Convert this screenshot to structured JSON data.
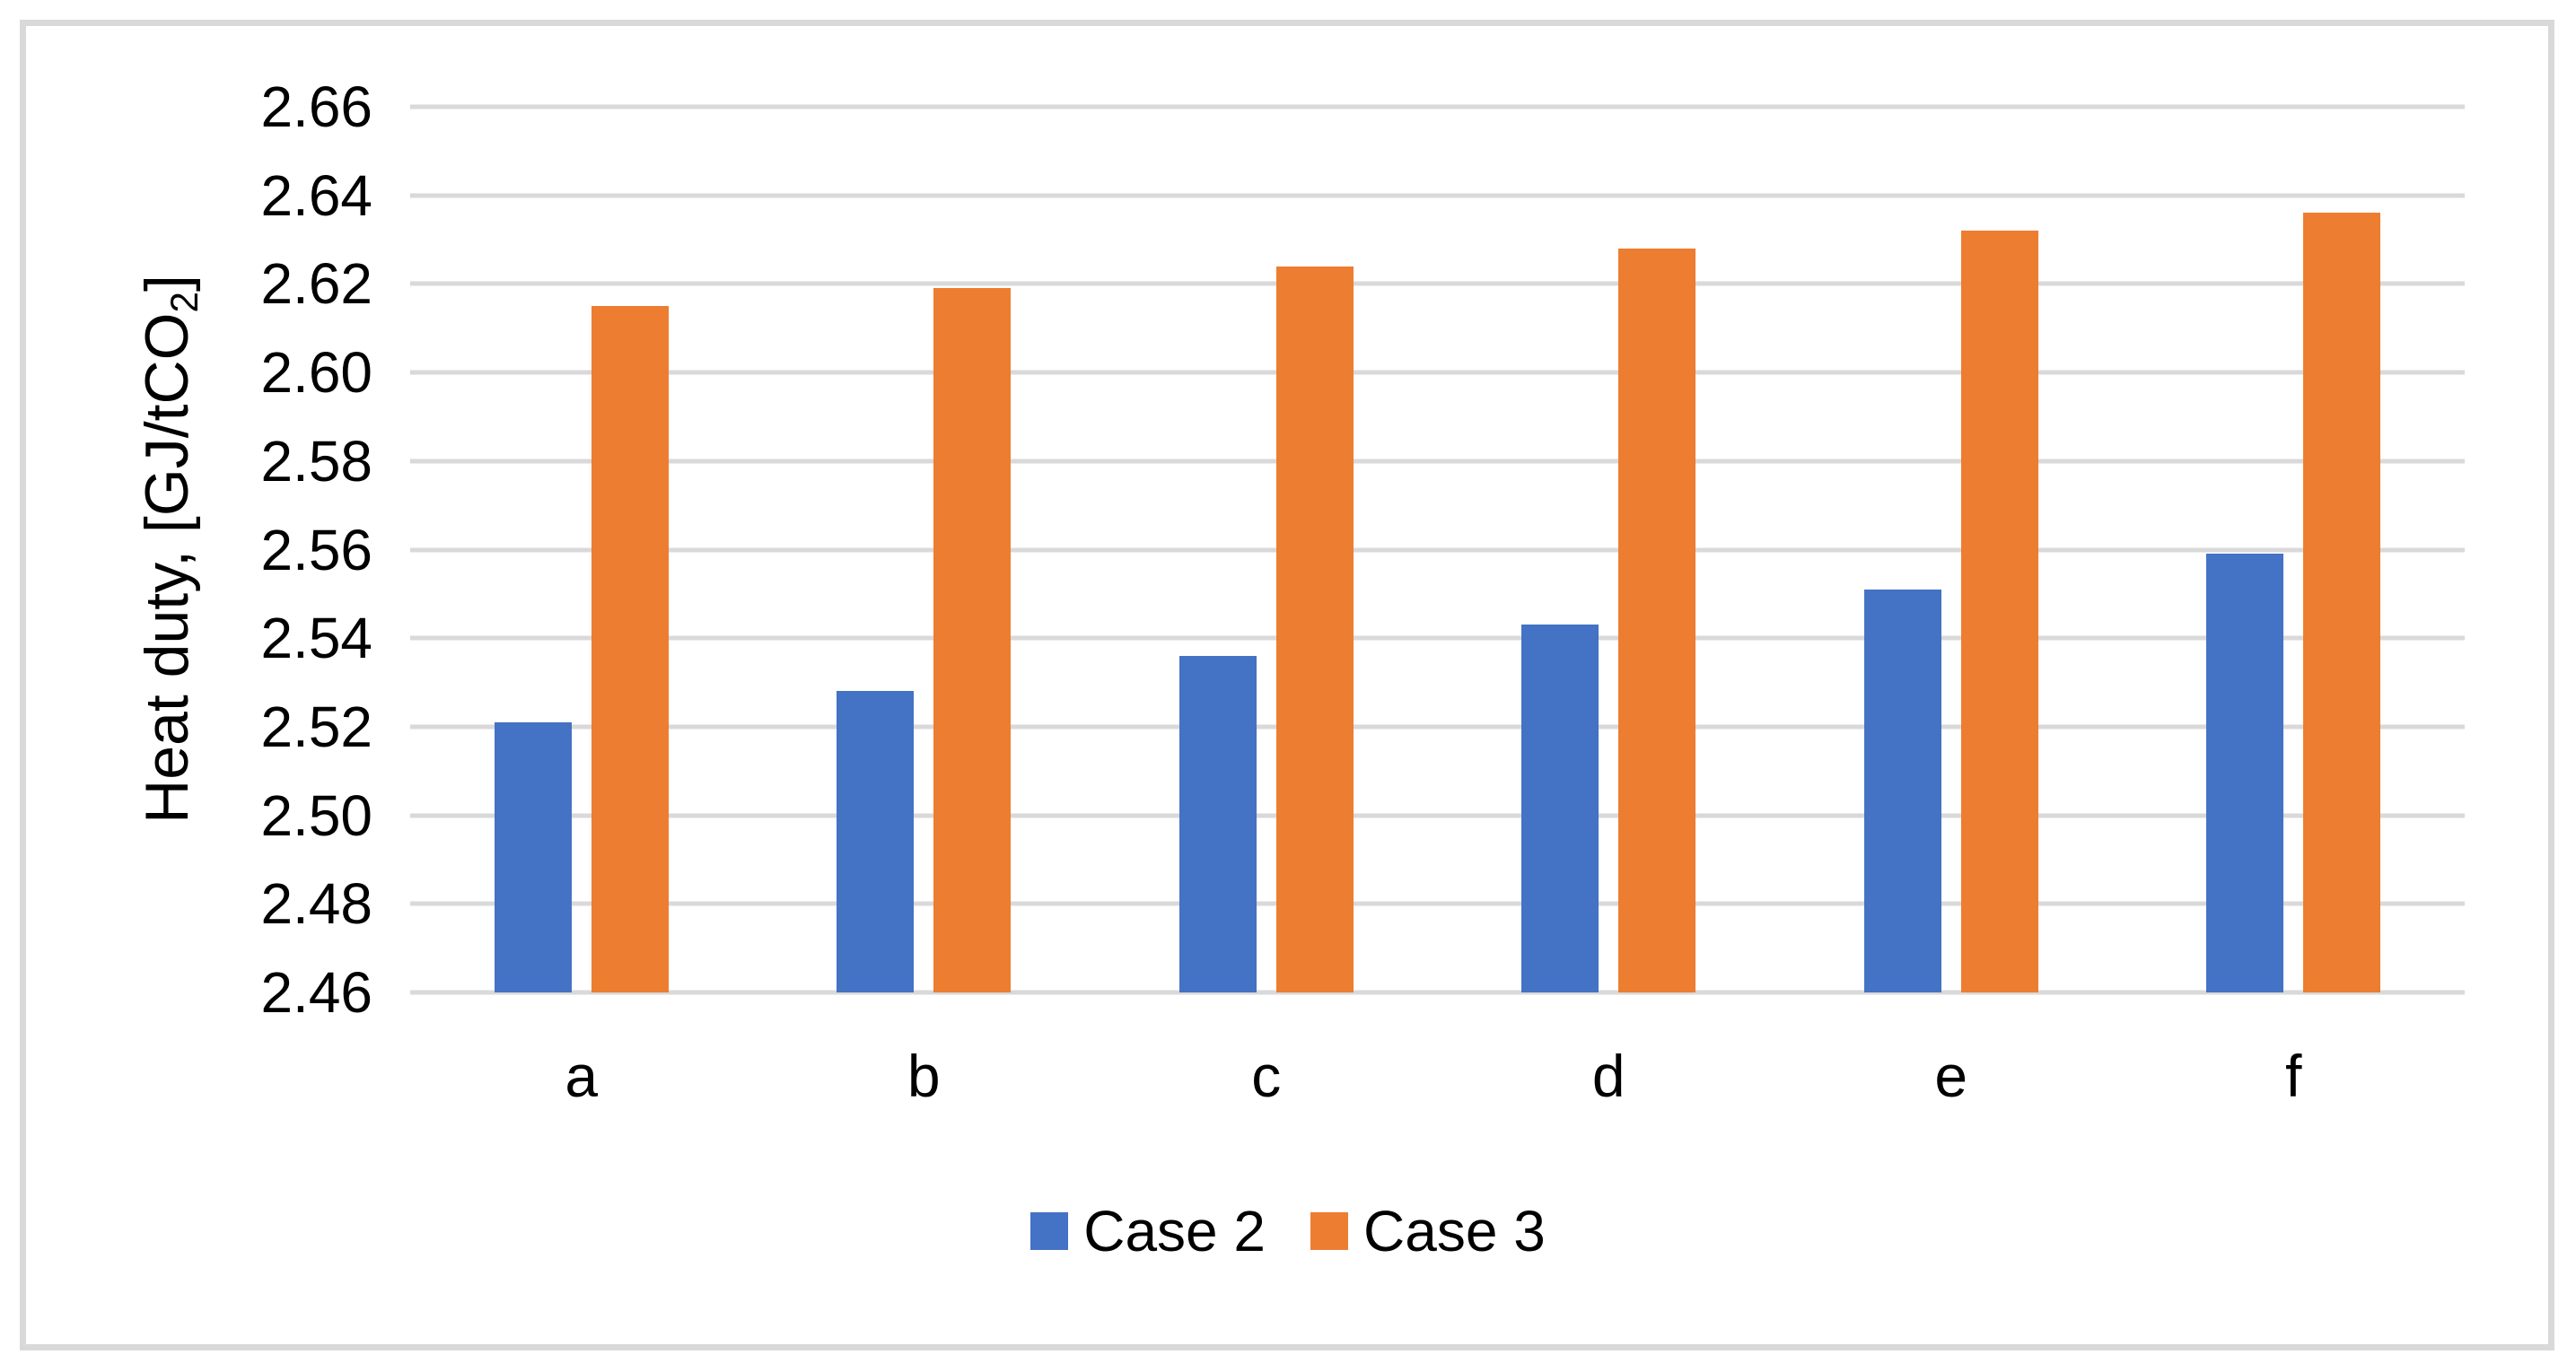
{
  "figure": {
    "background": "#FFFFFF",
    "border_color": "#D9D9D9",
    "gridline_color": "#D9D9D9",
    "text_color": "#000000"
  },
  "axis": {
    "y_title_pre": "Heat duty, [GJ/tCO",
    "y_title_sub": "2",
    "y_title_post": "]"
  },
  "chart_data": {
    "type": "bar",
    "title": "",
    "xlabel": "",
    "ylabel": "Heat duty, [GJ/tCO2]",
    "categories": [
      "a",
      "b",
      "c",
      "d",
      "e",
      "f"
    ],
    "series": [
      {
        "name": "Case 2",
        "color": "#4472C4",
        "values": [
          2.521,
          2.528,
          2.536,
          2.543,
          2.551,
          2.559
        ]
      },
      {
        "name": "Case 3",
        "color": "#ED7D31",
        "values": [
          2.615,
          2.619,
          2.624,
          2.628,
          2.632,
          2.636
        ]
      }
    ],
    "ylim": [
      2.46,
      2.66
    ],
    "ytick_step": 0.02,
    "yticks": [
      "2.66",
      "2.64",
      "2.62",
      "2.60",
      "2.58",
      "2.56",
      "2.54",
      "2.52",
      "2.50",
      "2.48",
      "2.46"
    ],
    "grid": true,
    "legend_position": "bottom"
  }
}
